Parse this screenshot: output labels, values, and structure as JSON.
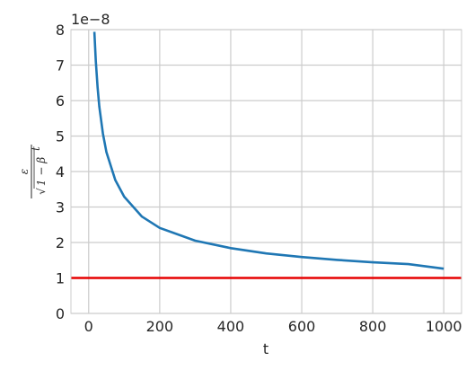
{
  "chart_data": {
    "type": "line",
    "xlabel": "t",
    "ylabel_math": {
      "numerator": "ε",
      "radicand": "1 − β",
      "sqrt_prefix": "√",
      "exponent": "t"
    },
    "y_offset_text": "1e−8",
    "xlim": [
      -50,
      1050
    ],
    "ylim": [
      0,
      8
    ],
    "x_ticks": [
      0,
      200,
      400,
      600,
      800,
      1000
    ],
    "y_ticks": [
      0,
      1,
      2,
      3,
      4,
      5,
      6,
      7,
      8
    ],
    "grid": true,
    "series": [
      {
        "color": "#1f77b4",
        "x": [
          16,
          20,
          25,
          30,
          40,
          50,
          75,
          100,
          150,
          200,
          300,
          400,
          500,
          600,
          700,
          800,
          900,
          1000
        ],
        "y": [
          7.94,
          7.11,
          6.37,
          5.83,
          5.07,
          4.55,
          3.76,
          3.29,
          2.73,
          2.41,
          2.05,
          1.84,
          1.69,
          1.59,
          1.51,
          1.44,
          1.39,
          1.26
        ]
      },
      {
        "color": "#e60000",
        "x": [
          -50,
          1050
        ],
        "y": [
          1,
          1
        ]
      }
    ]
  }
}
